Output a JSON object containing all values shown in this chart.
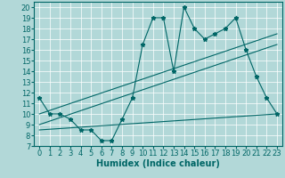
{
  "xlabel": "Humidex (Indice chaleur)",
  "bg_color": "#b2d8d8",
  "line_color": "#006666",
  "xlim": [
    -0.5,
    23.5
  ],
  "ylim": [
    7,
    20.5
  ],
  "yticks": [
    7,
    8,
    9,
    10,
    11,
    12,
    13,
    14,
    15,
    16,
    17,
    18,
    19,
    20
  ],
  "xticks": [
    0,
    1,
    2,
    3,
    4,
    5,
    6,
    7,
    8,
    9,
    10,
    11,
    12,
    13,
    14,
    15,
    16,
    17,
    18,
    19,
    20,
    21,
    22,
    23
  ],
  "line1_x": [
    0,
    1,
    2,
    3,
    4,
    5,
    6,
    7,
    8,
    9,
    10,
    11,
    12,
    13,
    14,
    15,
    16,
    17,
    18,
    19,
    20,
    21,
    22,
    23
  ],
  "line1_y": [
    11.5,
    10.0,
    10.0,
    9.5,
    8.5,
    8.5,
    7.5,
    7.5,
    9.5,
    11.5,
    16.5,
    19.0,
    19.0,
    14.0,
    20.0,
    18.0,
    17.0,
    17.5,
    18.0,
    19.0,
    16.0,
    13.5,
    11.5,
    10.0
  ],
  "line2_x": [
    0,
    23
  ],
  "line2_y": [
    10.0,
    17.5
  ],
  "line3_x": [
    0,
    23
  ],
  "line3_y": [
    9.0,
    16.5
  ],
  "line4_x": [
    0,
    23
  ],
  "line4_y": [
    8.5,
    10.0
  ],
  "grid_color": "#c8e0e0",
  "font_size": 6
}
